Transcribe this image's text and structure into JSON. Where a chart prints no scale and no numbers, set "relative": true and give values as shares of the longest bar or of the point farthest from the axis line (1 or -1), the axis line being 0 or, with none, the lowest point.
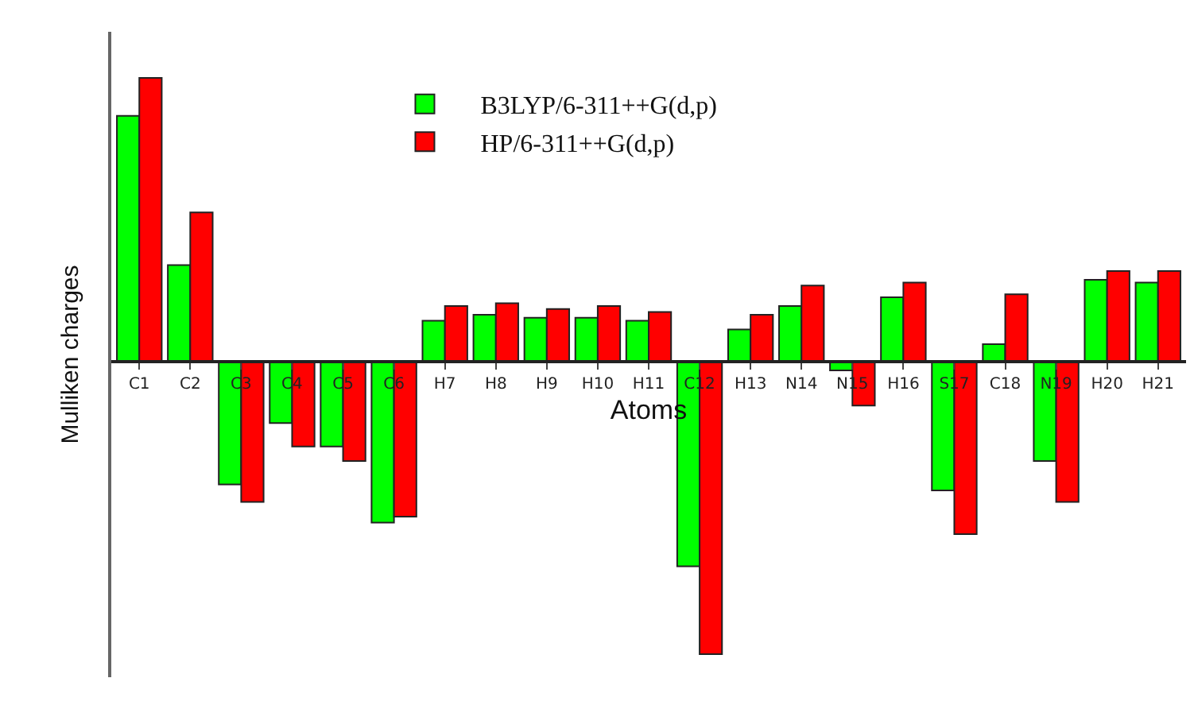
{
  "chart_data": {
    "type": "bar",
    "relative": true,
    "xlabel": "Atoms",
    "ylabel": "Mulliken charges",
    "categories": [
      "C1",
      "C2",
      "C3",
      "C4",
      "C5",
      "C6",
      "H7",
      "H8",
      "H9",
      "H10",
      "H11",
      "C12",
      "H13",
      "N14",
      "N15",
      "H16",
      "S17",
      "C18",
      "N19",
      "H20",
      "H21"
    ],
    "series": [
      {
        "name": "B3LYP/6-311++G(d,p)",
        "color": "#00ff00",
        "values": [
          0.84,
          0.33,
          -0.42,
          -0.21,
          -0.29,
          -0.55,
          0.14,
          0.16,
          0.15,
          0.15,
          0.14,
          -0.7,
          0.11,
          0.19,
          -0.03,
          0.22,
          -0.44,
          0.06,
          -0.34,
          0.28,
          0.27
        ]
      },
      {
        "name": "HP/6-311++G(d,p)",
        "color": "#ff0000",
        "values": [
          0.97,
          0.51,
          -0.48,
          -0.29,
          -0.34,
          -0.53,
          0.19,
          0.2,
          0.18,
          0.19,
          0.17,
          -1.0,
          0.16,
          0.26,
          -0.15,
          0.27,
          -0.59,
          0.23,
          -0.48,
          0.31,
          0.31
        ]
      }
    ],
    "legend": "top"
  }
}
